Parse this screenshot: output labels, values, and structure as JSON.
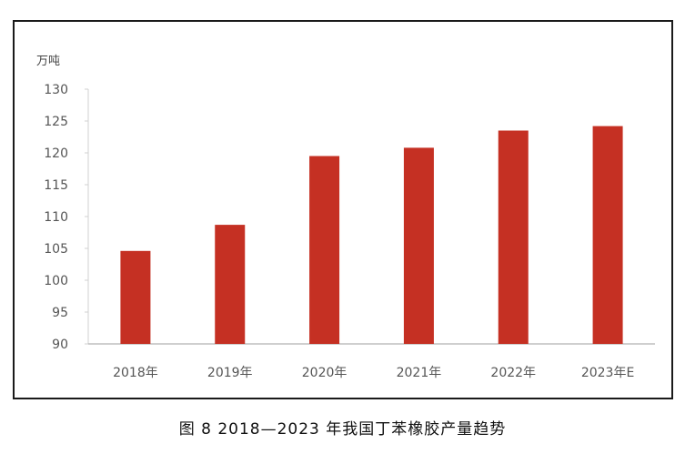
{
  "chart_data": {
    "type": "bar",
    "unit_label": "万吨",
    "categories": [
      "2018年",
      "2019年",
      "2020年",
      "2021年",
      "2022年",
      "2023年E"
    ],
    "values": [
      104.6,
      108.7,
      119.5,
      120.8,
      123.5,
      124.2
    ],
    "ylim": [
      90,
      130
    ],
    "yticks": [
      90,
      95,
      100,
      105,
      110,
      115,
      120,
      125,
      130
    ],
    "grid": false,
    "bar_color": "#c53023"
  },
  "caption": "图 8  2018—2023 年我国丁苯橡胶产量趋势"
}
